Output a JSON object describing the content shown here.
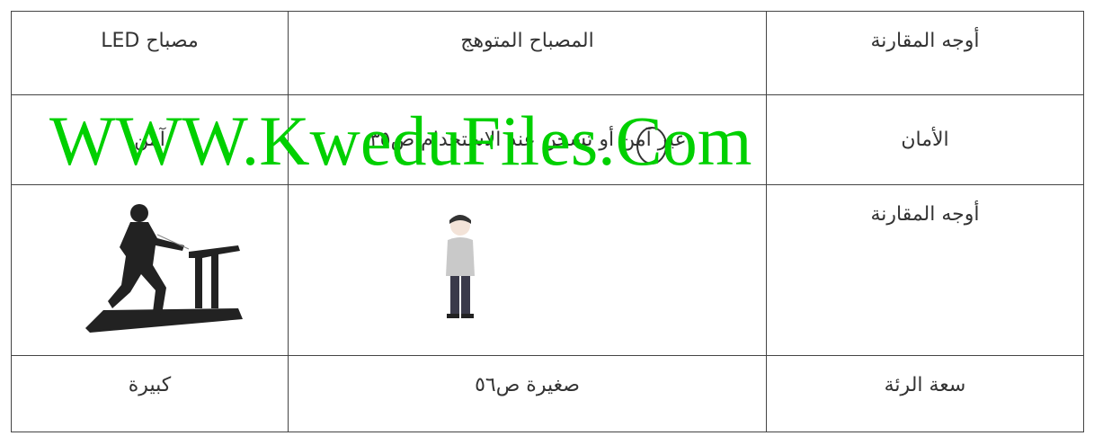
{
  "table": {
    "rows": [
      [
        "أوجه المقارنة",
        "المصباح المتوهج",
        "مصباح LED"
      ],
      [
        "الأمان",
        "غير آمن أو تسخن عند الاستخدام ص٣٥",
        "آمن"
      ],
      [
        "أوجه المقارنة"
      ],
      [
        "سعة الرئة",
        "صغيرة ص٥٦",
        "كبيرة"
      ]
    ]
  },
  "watermark": "WWW.KweduFiles.Com"
}
